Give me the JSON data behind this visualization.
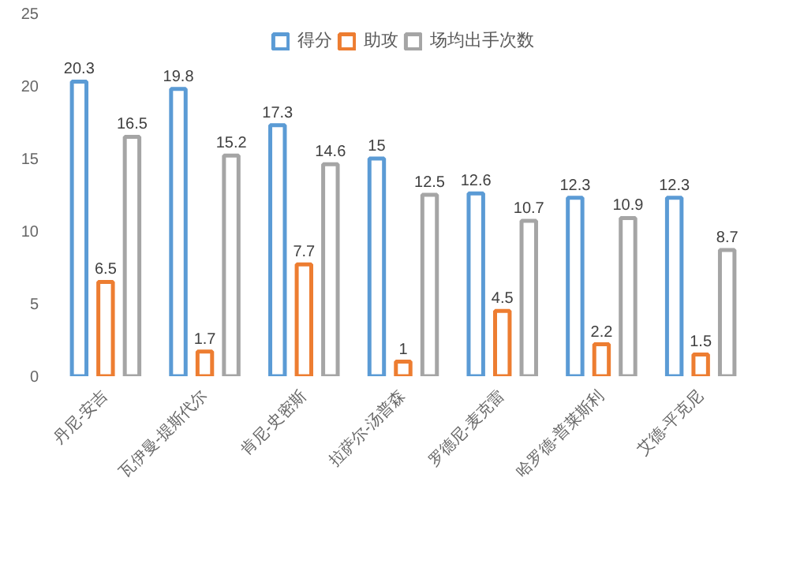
{
  "chart_data": {
    "type": "bar",
    "categories": [
      "丹尼-安吉",
      "瓦伊曼-提斯代尔",
      "肯尼-史密斯",
      "拉萨尔-汤普森",
      "罗德尼-麦克雷",
      "哈罗德-普莱斯利",
      "艾德-平克尼"
    ],
    "series": [
      {
        "name": "得分",
        "color": "#5b9bd5",
        "values": [
          20.3,
          19.8,
          17.3,
          15,
          12.6,
          12.3,
          12.3
        ]
      },
      {
        "name": "助攻",
        "color": "#ed7d31",
        "values": [
          6.5,
          1.7,
          7.7,
          1,
          4.5,
          2.2,
          1.5
        ]
      },
      {
        "name": "场均出手次数",
        "color": "#a5a5a5",
        "values": [
          16.5,
          15.2,
          14.6,
          12.5,
          10.7,
          10.9,
          8.7
        ]
      }
    ],
    "ylim": [
      0,
      25
    ],
    "yticks": [
      0,
      5,
      10,
      15,
      20,
      25
    ],
    "grid": false,
    "legend": "top",
    "data_labels": true
  }
}
